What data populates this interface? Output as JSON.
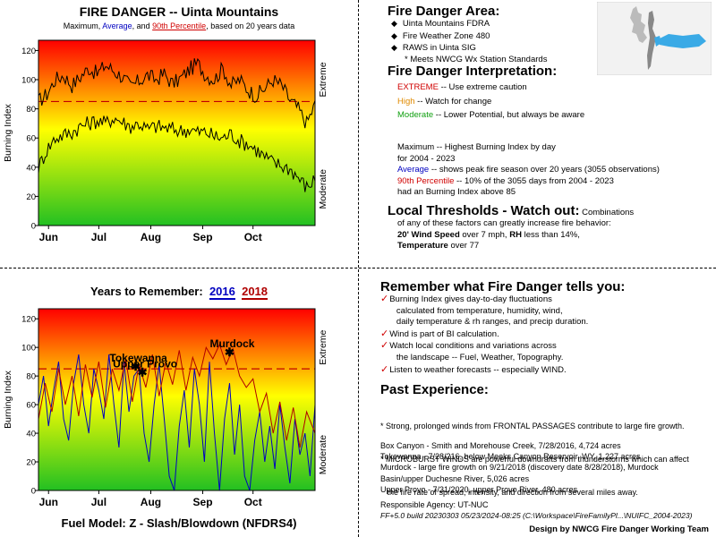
{
  "charts": {
    "top_title": "FIRE DANGER -- Uinta Mountains",
    "top_subtitle_parts": [
      "Maximum, ",
      "Average",
      ", and ",
      "90th Percentile",
      ", based on 20 years data"
    ],
    "bottom_title_prefix": "Years to Remember:",
    "bottom_year1": "2016",
    "bottom_year2": "2018",
    "fuel_model": "Fuel Model: Z - Slash/Blowdown (NFDRS4)"
  },
  "chart_data": [
    {
      "type": "line",
      "title": "FIRE DANGER -- Uinta Mountains",
      "ylabel": "Burning Index",
      "right_labels": [
        "Extreme",
        "Moderate"
      ],
      "ylim": [
        0,
        127
      ],
      "yticks": [
        0,
        20,
        40,
        60,
        80,
        100,
        120
      ],
      "xlim": [
        0,
        165
      ],
      "xticks": [
        {
          "label": "Jun",
          "pos": 6
        },
        {
          "label": "Jul",
          "pos": 36
        },
        {
          "label": "Aug",
          "pos": 67
        },
        {
          "label": "Sep",
          "pos": 98
        },
        {
          "label": "Oct",
          "pos": 128
        }
      ],
      "percentile_90": 85,
      "series": [
        {
          "name": "Maximum",
          "color": "#000000",
          "anchors": [
            [
              0,
              85
            ],
            [
              5,
              90
            ],
            [
              10,
              100
            ],
            [
              15,
              103
            ],
            [
              20,
              96
            ],
            [
              25,
              102
            ],
            [
              30,
              108
            ],
            [
              35,
              104
            ],
            [
              40,
              110
            ],
            [
              45,
              106
            ],
            [
              50,
              102
            ],
            [
              55,
              95
            ],
            [
              60,
              99
            ],
            [
              65,
              103
            ],
            [
              70,
              100
            ],
            [
              75,
              104
            ],
            [
              80,
              97
            ],
            [
              85,
              101
            ],
            [
              90,
              107
            ],
            [
              95,
              111
            ],
            [
              100,
              103
            ],
            [
              105,
              100
            ],
            [
              110,
              108
            ],
            [
              115,
              96
            ],
            [
              120,
              100
            ],
            [
              125,
              93
            ],
            [
              130,
              89
            ],
            [
              135,
              94
            ],
            [
              140,
              100
            ],
            [
              145,
              96
            ],
            [
              150,
              86
            ],
            [
              155,
              80
            ],
            [
              160,
              70
            ],
            [
              165,
              83
            ]
          ]
        },
        {
          "name": "Average",
          "color": "#000000",
          "anchors": [
            [
              0,
              40
            ],
            [
              5,
              52
            ],
            [
              10,
              60
            ],
            [
              15,
              62
            ],
            [
              20,
              64
            ],
            [
              25,
              68
            ],
            [
              30,
              70
            ],
            [
              35,
              72
            ],
            [
              40,
              70
            ],
            [
              45,
              74
            ],
            [
              50,
              71
            ],
            [
              55,
              68
            ],
            [
              60,
              70
            ],
            [
              65,
              66
            ],
            [
              70,
              68
            ],
            [
              75,
              67
            ],
            [
              80,
              66
            ],
            [
              85,
              65
            ],
            [
              90,
              66
            ],
            [
              95,
              64
            ],
            [
              100,
              64
            ],
            [
              105,
              61
            ],
            [
              110,
              60
            ],
            [
              115,
              63
            ],
            [
              120,
              58
            ],
            [
              125,
              56
            ],
            [
              130,
              52
            ],
            [
              135,
              47
            ],
            [
              140,
              43
            ],
            [
              145,
              41
            ],
            [
              150,
              39
            ],
            [
              155,
              33
            ],
            [
              160,
              26
            ],
            [
              165,
              32
            ]
          ]
        }
      ]
    },
    {
      "type": "line",
      "title": "Years to Remember: 2016 2018",
      "ylabel": "Burning Index",
      "right_labels": [
        "Extreme",
        "Moderate"
      ],
      "ylim": [
        0,
        127
      ],
      "yticks": [
        0,
        20,
        40,
        60,
        80,
        100,
        120
      ],
      "xlim": [
        0,
        165
      ],
      "xticks": [
        {
          "label": "Jun",
          "pos": 6
        },
        {
          "label": "Jul",
          "pos": 36
        },
        {
          "label": "Aug",
          "pos": 67
        },
        {
          "label": "Sep",
          "pos": 98
        },
        {
          "label": "Oct",
          "pos": 128
        }
      ],
      "percentile_90": 85,
      "series": [
        {
          "name": "2016",
          "color": "#0000c0",
          "points": [
            [
              0,
              60
            ],
            [
              3,
              80
            ],
            [
              6,
              45
            ],
            [
              9,
              70
            ],
            [
              12,
              90
            ],
            [
              15,
              50
            ],
            [
              18,
              35
            ],
            [
              21,
              75
            ],
            [
              24,
              95
            ],
            [
              27,
              60
            ],
            [
              30,
              40
            ],
            [
              33,
              85
            ],
            [
              36,
              70
            ],
            [
              39,
              50
            ],
            [
              42,
              95
            ],
            [
              45,
              60
            ],
            [
              48,
              30
            ],
            [
              51,
              90
            ],
            [
              54,
              55
            ],
            [
              57,
              80
            ],
            [
              60,
              85
            ],
            [
              63,
              40
            ],
            [
              66,
              20
            ],
            [
              69,
              60
            ],
            [
              72,
              88
            ],
            [
              75,
              50
            ],
            [
              78,
              10
            ],
            [
              81,
              0
            ],
            [
              84,
              45
            ],
            [
              87,
              70
            ],
            [
              90,
              30
            ],
            [
              93,
              85
            ],
            [
              96,
              60
            ],
            [
              99,
              20
            ],
            [
              102,
              90
            ],
            [
              105,
              40
            ],
            [
              108,
              0
            ],
            [
              111,
              50
            ],
            [
              114,
              75
            ],
            [
              117,
              25
            ],
            [
              120,
              60
            ],
            [
              123,
              10
            ],
            [
              126,
              0
            ],
            [
              129,
              35
            ],
            [
              132,
              55
            ],
            [
              135,
              20
            ],
            [
              138,
              45
            ],
            [
              141,
              15
            ],
            [
              144,
              60
            ],
            [
              147,
              30
            ],
            [
              150,
              5
            ],
            [
              153,
              50
            ],
            [
              156,
              25
            ],
            [
              159,
              40
            ],
            [
              162,
              10
            ],
            [
              165,
              60
            ]
          ]
        },
        {
          "name": "2018",
          "color": "#b00000",
          "points": [
            [
              0,
              50
            ],
            [
              4,
              75
            ],
            [
              8,
              55
            ],
            [
              12,
              85
            ],
            [
              16,
              60
            ],
            [
              20,
              80
            ],
            [
              24,
              52
            ],
            [
              28,
              88
            ],
            [
              32,
              65
            ],
            [
              36,
              90
            ],
            [
              40,
              58
            ],
            [
              44,
              85
            ],
            [
              48,
              70
            ],
            [
              52,
              92
            ],
            [
              56,
              62
            ],
            [
              60,
              88
            ],
            [
              64,
              72
            ],
            [
              68,
              95
            ],
            [
              72,
              66
            ],
            [
              76,
              90
            ],
            [
              80,
              74
            ],
            [
              84,
              98
            ],
            [
              88,
              70
            ],
            [
              92,
              93
            ],
            [
              96,
              80
            ],
            [
              100,
              100
            ],
            [
              104,
              92
            ],
            [
              108,
              102
            ],
            [
              112,
              88
            ],
            [
              116,
              99
            ],
            [
              120,
              80
            ],
            [
              124,
              72
            ],
            [
              128,
              78
            ],
            [
              132,
              55
            ],
            [
              136,
              68
            ],
            [
              140,
              40
            ],
            [
              144,
              62
            ],
            [
              148,
              35
            ],
            [
              152,
              58
            ],
            [
              156,
              30
            ],
            [
              160,
              55
            ],
            [
              165,
              40
            ]
          ]
        }
      ],
      "annotations": [
        {
          "text": "Tokewanna",
          "x": 58,
          "y": 87
        },
        {
          "text": "Upper Provo",
          "x": 62,
          "y": 83
        },
        {
          "text": "Murdock",
          "x": 114,
          "y": 97
        }
      ]
    }
  ],
  "right_top": {
    "area_title": "Fire Danger Area:",
    "area_items": [
      "Uinta Mountains FDRA",
      "Fire Weather Zone 480",
      "RAWS in Uinta SIG"
    ],
    "area_note": "* Meets NWCG Wx Station Standards",
    "interp_title": "Fire Danger Interpretation:",
    "interp_extreme_label": "EXTREME",
    "interp_extreme_text": " -- Use extreme caution",
    "interp_high_label": "High",
    "interp_high_text": " -- Watch for change",
    "interp_moderate_label": "Moderate",
    "interp_moderate_text": " -- Lower Potential, but always be aware",
    "def_max_line1": "Maximum  -- Highest Burning Index by day",
    "def_max_line2": "for 2004 - 2023",
    "def_avg_label": "Average",
    "def_avg_text": " -- shows peak fire season over 20 years (3055 observations)",
    "def_p90_label": "90th Percentile",
    "def_p90_text": "  -- 10% of the 3055 days from 2004 - 2023",
    "def_p90_line2": "had an Burning Index above 85",
    "thresh_title": "Local Thresholds - Watch out:",
    "thresh_intro": "  Combinations",
    "thresh_line2": "of any of these factors can greatly increase fire behavior:",
    "thresh_wind_label": "20' Wind Speed",
    "thresh_wind_text": " over 7 mph, ",
    "thresh_rh_label": "RH",
    "thresh_rh_text": "  less than 14%,",
    "thresh_temp_label": "Temperature",
    "thresh_temp_text": " over 77"
  },
  "right_bottom": {
    "remember_title": "Remember what Fire Danger tells you:",
    "remember_items": [
      {
        "lines": [
          "Burning Index gives day-to-day fluctuations",
          "   calculated from temperature, humidity, wind,",
          "   daily temperature & rh ranges, and precip duration."
        ]
      },
      {
        "lines": [
          "Wind is part of BI calculation."
        ]
      },
      {
        "lines": [
          "Watch local conditions and variations across",
          "   the landscape -- Fuel, Weather, Topography."
        ]
      },
      {
        "lines": [
          "Listen to weather forecasts -- especially WIND."
        ]
      }
    ],
    "past_title": "Past Experience:",
    "past_lines": [
      "* Strong, prolonged winds from FRONTAL PASSAGES contribute to large fire growth.",
      "* MICROBURST WINDS are powerful downdrafts from thunderstorms which can affect",
      "   the fire rate of spread, intensity, and direction from several miles away."
    ],
    "fire_lines": [
      "Box Canyon - Smith and Morehouse Creek, 7/28/2016, 4,724 acres",
      "Tokewanna - 7/28/216, below Meeks Canyon Reservoir, WY, 1,227 acres",
      "Murdock - large fire growth on 9/21/2018 (discovery date 8/28/2018), Murdock",
      "Basin/upper Duchesne River, 5,026 acres",
      "Upper Provo - 7/31/2020, upper Provo River, 480 acres"
    ],
    "agency": "Responsible Agency: UT-NUC",
    "build": "FF+5.0 build 20230303 05/23/2024-08:25 (C:\\Workspace\\FireFamilyPl...\\NUIFC_2004-2023)",
    "credit": "Design by NWCG Fire Danger Working Team"
  },
  "colors": {
    "gradient_top": "#ff0000",
    "gradient_mid": "#ffff00",
    "gradient_bottom": "#22c022",
    "percentile_line": "#c00000",
    "map_highlight": "#3aaae6",
    "map_gray": "#bbbbbb"
  }
}
